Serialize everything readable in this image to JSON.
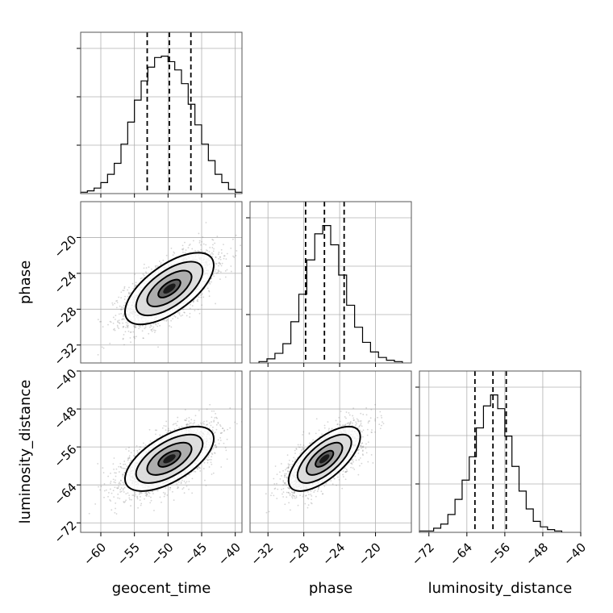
{
  "chart_data": {
    "type": "corner",
    "parameters": [
      {
        "id": "geocent_time",
        "label": "geocent_time",
        "range": [
          -63,
          -39
        ],
        "ticks": [
          -60,
          -55,
          -50,
          -45,
          -40
        ],
        "mean": -49.8,
        "sd": 3.3,
        "quantiles": [
          -53.1,
          -49.8,
          -46.6
        ],
        "hist_range": [
          -63,
          -39
        ],
        "hist": [
          1,
          2,
          4,
          8,
          14,
          22,
          36,
          52,
          68,
          82,
          92,
          99,
          100,
          96,
          90,
          80,
          65,
          50,
          36,
          24,
          14,
          8,
          3,
          1
        ]
      },
      {
        "id": "phase",
        "label": "phase",
        "range": [
          -34,
          -16
        ],
        "ticks": [
          -32,
          -28,
          -24,
          -20
        ],
        "mean": -25.7,
        "sd": 2.0,
        "quantiles": [
          -27.8,
          -25.7,
          -23.5
        ],
        "hist_range": [
          -33,
          -17
        ],
        "hist": [
          1,
          3,
          7,
          14,
          30,
          50,
          75,
          94,
          100,
          86,
          64,
          42,
          26,
          15,
          8,
          4,
          2,
          1
        ]
      },
      {
        "id": "luminosity_distance",
        "label": "luminosity_distance",
        "range": [
          -74,
          -40
        ],
        "ticks": [
          -72,
          -64,
          -56,
          -48,
          -40
        ],
        "mean": -58.5,
        "sd": 3.4,
        "quantiles": [
          -62.3,
          -58.5,
          -55.7
        ],
        "hist_range": [
          -74,
          -44
        ],
        "hist": [
          1,
          1,
          3,
          6,
          13,
          24,
          38,
          55,
          76,
          92,
          100,
          90,
          70,
          48,
          30,
          17,
          8,
          4,
          2,
          1
        ]
      }
    ],
    "correlations": {
      "0-1": 0.65,
      "0-2": 0.62,
      "1-2": 0.68
    },
    "grid": true,
    "quantile_line_style": "dashed",
    "contours": "filled density"
  }
}
